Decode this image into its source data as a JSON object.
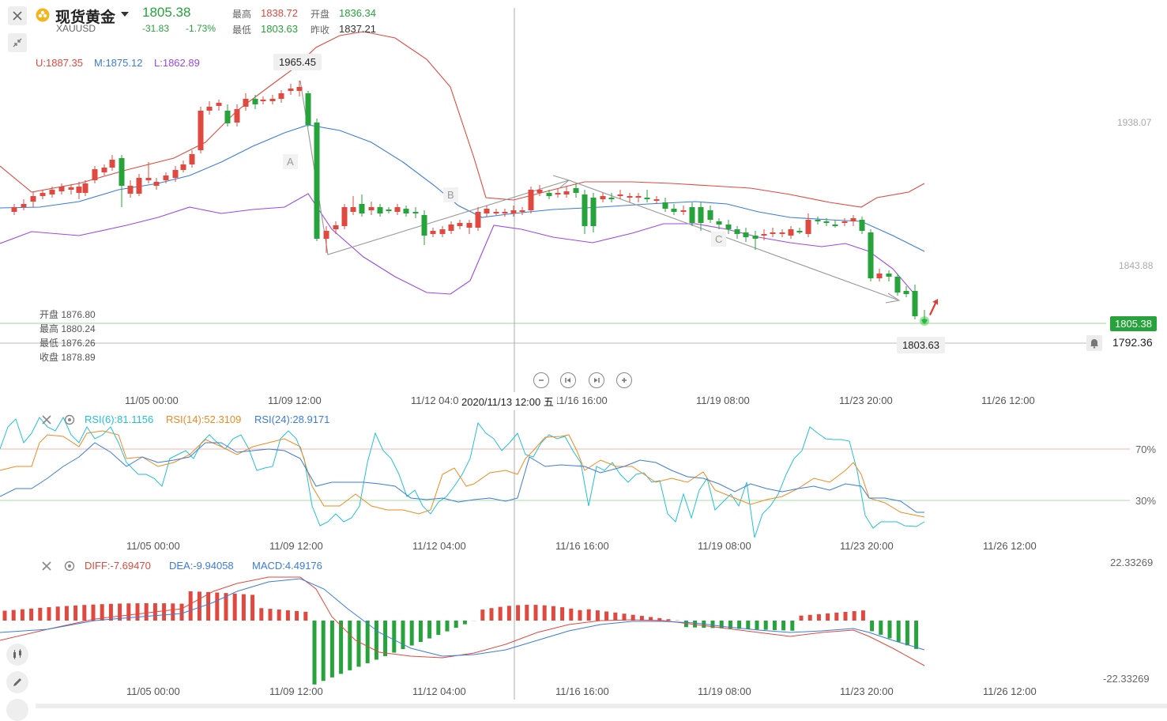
{
  "header": {
    "name": "现货黄金",
    "symbol": "XAUUSD",
    "price": "1805.38",
    "change": "-31.83",
    "change_pct": "-1.73%",
    "high_label": "最高",
    "high": "1838.72",
    "open_label": "开盘",
    "open": "1836.34",
    "low_label": "最低",
    "low": "1803.63",
    "prev_label": "昨收",
    "prev": "1837.21"
  },
  "boll": {
    "u": "U:1887.35",
    "m": "M:1875.12",
    "l": "L:1862.89"
  },
  "ohlc_box": {
    "open": "开盘 1876.80",
    "high": "最高 1880.24",
    "low": "最低 1876.26",
    "close": "收盘 1878.89"
  },
  "price_axis": {
    "t1": "1938.07",
    "t2": "1843.88"
  },
  "tags": {
    "peak": "1965.45",
    "trough": "1803.63",
    "current": "1805.38",
    "alert": "1792.36"
  },
  "wave_labels": {
    "a": "A",
    "b": "B",
    "c": "C"
  },
  "x_axis": [
    "11/05 00:00",
    "11/09 12:00",
    "11/12 04:00",
    "11/16 16:00",
    "11/19 08:00",
    "11/23 20:00",
    "11/26 12:00"
  ],
  "crosshair_time": "2020/11/13 12:00 五",
  "rsi": {
    "rsi6": "RSI(6):81.1156",
    "rsi14": "RSI(14):52.3109",
    "rsi24": "RSI(24):28.9171",
    "level_high": "70%",
    "level_low": "30%"
  },
  "macd": {
    "diff": "DIFF:-7.69470",
    "dea": "DEA:-9.94058",
    "macd": "MACD:4.49176",
    "top": "22.33269",
    "bottom": "-22.33269"
  },
  "colors": {
    "up": "#e0493f",
    "down": "#26a33a",
    "upper": "#e0493f",
    "mid": "#3a7be0",
    "lower": "#9b48e6"
  },
  "icons": [
    "close-icon",
    "collapse-icon",
    "gold-coin-icon",
    "dropdown-icon",
    "zoom-out-icon",
    "step-back-icon",
    "step-forward-icon",
    "zoom-in-icon",
    "settings-icon",
    "bell-icon",
    "candle-style-icon",
    "draw-pen-icon"
  ]
}
